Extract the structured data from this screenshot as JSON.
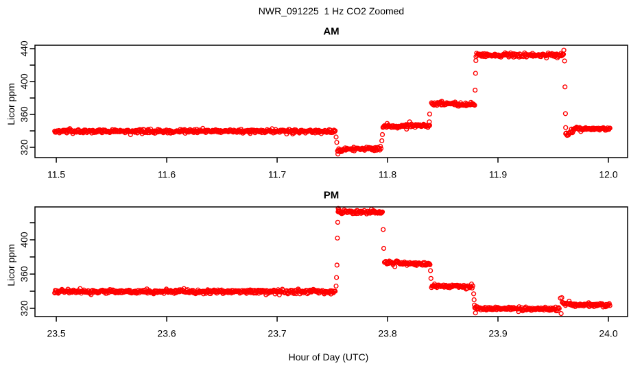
{
  "figure": {
    "title": "NWR_091225  1 Hz CO2 Zoomed",
    "xlabel": "Hour of Day (UTC)",
    "colors": {
      "points": "#FF0000",
      "axis": "#000000",
      "background": "#FFFFFF"
    }
  },
  "chart_data": [
    {
      "type": "scatter",
      "panel": "am",
      "title": "AM",
      "ylabel": "Licor ppm",
      "marker": "open-circle",
      "legend": "none",
      "grid": false,
      "xlim": [
        11.4807,
        12.0174
      ],
      "ylim": [
        307.5,
        444.2
      ],
      "x_ticks": [
        {
          "v": 11.5,
          "label": "11.5"
        },
        {
          "v": 11.6,
          "label": "11.6"
        },
        {
          "v": 11.7,
          "label": "11.7"
        },
        {
          "v": 11.8,
          "label": "11.8"
        },
        {
          "v": 11.9,
          "label": "11.9"
        },
        {
          "v": 12.0,
          "label": "12.0"
        }
      ],
      "y_ticks": [
        {
          "v": 320,
          "label": "320"
        },
        {
          "v": 340
        },
        {
          "v": 360,
          "label": "360"
        },
        {
          "v": 380
        },
        {
          "v": 400,
          "label": "400"
        },
        {
          "v": 420
        },
        {
          "v": 440,
          "label": "440"
        }
      ],
      "sample_interval_hr": 0.00055,
      "segments": [
        {
          "x0": 11.4985,
          "x1": 11.7528,
          "y0": 339.5,
          "y1": 339.5,
          "sd": 1.1
        },
        {
          "x0": 11.7547,
          "x1": 11.76,
          "y0": 314.0,
          "y1": 317.2,
          "sd": 1.3
        },
        {
          "x0": 11.76,
          "x1": 11.7944,
          "y0": 317.5,
          "y1": 318.6,
          "sd": 1.1
        },
        {
          "x0": 11.7958,
          "x1": 11.8385,
          "y0": 345.8,
          "y1": 346.3,
          "sd": 1.1
        },
        {
          "x0": 11.8398,
          "x1": 11.8789,
          "y0": 372.9,
          "y1": 372.3,
          "sd": 1.1
        },
        {
          "x0": 11.8801,
          "x1": 11.9598,
          "y0": 432.3,
          "y1": 432.4,
          "sd": 1.2
        },
        {
          "x0": 11.9615,
          "x1": 11.969,
          "y0": 334.5,
          "y1": 342.0,
          "sd": 1.3
        },
        {
          "x0": 11.969,
          "x1": 12.0019,
          "y0": 342.4,
          "y1": 342.4,
          "sd": 1.0
        }
      ],
      "transition_points": [
        [
          11.7534,
          332.5
        ],
        [
          11.754,
          326.0
        ],
        [
          11.755,
          311.8
        ],
        [
          11.7948,
          328.0
        ],
        [
          11.7953,
          335.5
        ],
        [
          11.8378,
          351.0
        ],
        [
          11.8381,
          360.5
        ],
        [
          11.8793,
          389.5
        ],
        [
          11.8797,
          410.0
        ],
        [
          11.88,
          425.5
        ],
        [
          11.9597,
          438.2
        ],
        [
          11.9603,
          425.0
        ],
        [
          11.9607,
          393.5
        ],
        [
          11.9611,
          361.0
        ],
        [
          11.9613,
          344.0
        ],
        [
          11.9614,
          336.5
        ]
      ]
    },
    {
      "type": "scatter",
      "panel": "pm",
      "title": "PM",
      "ylabel": "Licor ppm",
      "marker": "open-circle",
      "legend": "none",
      "grid": false,
      "xlim": [
        23.4807,
        24.0174
      ],
      "ylim": [
        310.4,
        438.4
      ],
      "x_ticks": [
        {
          "v": 23.5,
          "label": "23.5"
        },
        {
          "v": 23.6,
          "label": "23.6"
        },
        {
          "v": 23.7,
          "label": "23.7"
        },
        {
          "v": 23.8,
          "label": "23.8"
        },
        {
          "v": 23.9,
          "label": "23.9"
        },
        {
          "v": 24.0,
          "label": "24.0"
        }
      ],
      "y_ticks": [
        {
          "v": 320,
          "label": "320"
        },
        {
          "v": 340
        },
        {
          "v": 360,
          "label": "360"
        },
        {
          "v": 380
        },
        {
          "v": 400,
          "label": "400"
        },
        {
          "v": 420
        }
      ],
      "sample_interval_hr": 0.00055,
      "segments": [
        {
          "x0": 23.4985,
          "x1": 23.7528,
          "y0": 339.6,
          "y1": 339.6,
          "sd": 1.15
        },
        {
          "x0": 23.7552,
          "x1": 23.7957,
          "y0": 432.6,
          "y1": 431.9,
          "sd": 1.25
        },
        {
          "x0": 23.7972,
          "x1": 23.8385,
          "y0": 373.3,
          "y1": 371.4,
          "sd": 1.1
        },
        {
          "x0": 23.8398,
          "x1": 23.8776,
          "y0": 346.6,
          "y1": 345.1,
          "sd": 1.1
        },
        {
          "x0": 23.879,
          "x1": 23.956,
          "y0": 319.7,
          "y1": 319.2,
          "sd": 1.1
        },
        {
          "x0": 23.959,
          "x1": 23.97,
          "y0": 326.0,
          "y1": 324.5,
          "sd": 1.3
        },
        {
          "x0": 23.97,
          "x1": 24.0019,
          "y0": 323.8,
          "y1": 323.8,
          "sd": 1.0
        }
      ],
      "transition_points": [
        [
          23.7534,
          346.0
        ],
        [
          23.7538,
          356.0
        ],
        [
          23.7542,
          370.5
        ],
        [
          23.7546,
          402.0
        ],
        [
          23.7549,
          420.5
        ],
        [
          23.7553,
          436.6
        ],
        [
          23.756,
          435.2
        ],
        [
          23.7961,
          412.0
        ],
        [
          23.7966,
          390.0
        ],
        [
          23.8389,
          364.0
        ],
        [
          23.8393,
          355.0
        ],
        [
          23.878,
          337.0
        ],
        [
          23.8784,
          330.0
        ],
        [
          23.8787,
          323.8
        ],
        [
          23.8796,
          314.6
        ],
        [
          23.9565,
          331.8
        ],
        [
          23.9572,
          313.9
        ],
        [
          23.9578,
          332.5
        ],
        [
          23.9582,
          327.0
        ]
      ]
    }
  ]
}
